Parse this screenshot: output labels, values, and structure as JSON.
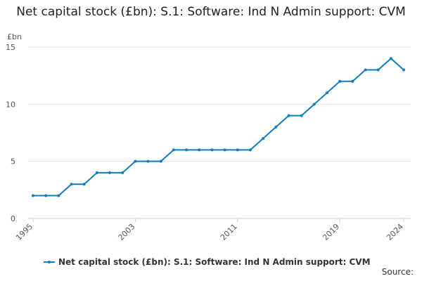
{
  "chart_data": {
    "type": "line",
    "title": "Net capital stock (£bn): S.1: Software: Ind N Admin support: CVM",
    "y_label": "£bn",
    "source": "Source:",
    "x": [
      1995,
      1996,
      1997,
      1998,
      1999,
      2000,
      2001,
      2002,
      2003,
      2004,
      2005,
      2006,
      2007,
      2008,
      2009,
      2010,
      2011,
      2012,
      2013,
      2014,
      2015,
      2016,
      2017,
      2018,
      2019,
      2020,
      2021,
      2022,
      2023,
      2024
    ],
    "series": [
      {
        "name": "Net capital stock (£bn): S.1: Software: Ind N Admin support: CVM",
        "color": "#0f7cbf",
        "values": [
          2,
          2,
          2,
          3,
          3,
          4,
          4,
          4,
          5,
          5,
          5,
          6,
          6,
          6,
          6,
          6,
          6,
          6,
          7,
          8,
          9,
          9,
          10,
          11,
          12,
          12,
          13,
          13,
          14,
          13
        ]
      }
    ],
    "xlim": [
      1995,
      2024
    ],
    "xticks": [
      1995,
      2003,
      2011,
      2019,
      2024
    ],
    "ylim": [
      0,
      15
    ],
    "yticks": [
      0,
      5,
      10,
      15
    ],
    "grid": true
  }
}
